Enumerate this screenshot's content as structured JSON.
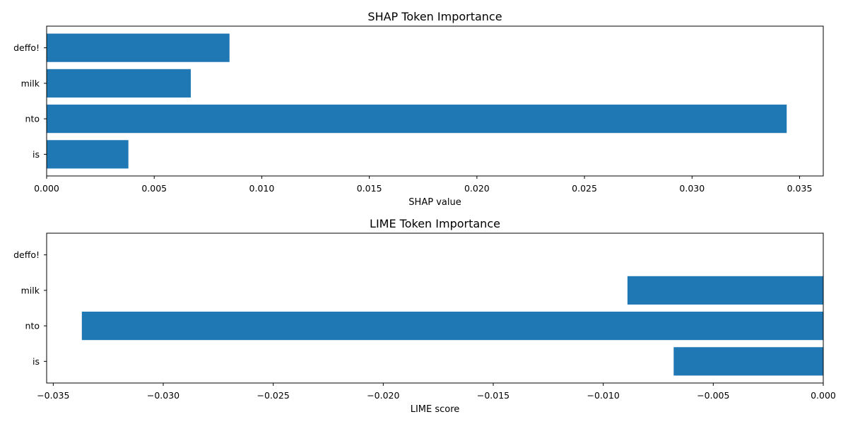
{
  "chart_data": [
    {
      "type": "bar",
      "orientation": "horizontal",
      "title": "SHAP Token Importance",
      "xlabel": "SHAP value",
      "ylabel": "",
      "categories": [
        "deffo!",
        "milk",
        "nto",
        "is"
      ],
      "values": [
        0.0085,
        0.0067,
        0.0344,
        0.0038
      ],
      "xlim": [
        0,
        0.0361
      ],
      "xticks": [
        0,
        0.005,
        0.01,
        0.015,
        0.02,
        0.025,
        0.03,
        0.035
      ],
      "xtick_labels": [
        "0.000",
        "0.005",
        "0.010",
        "0.015",
        "0.020",
        "0.025",
        "0.030",
        "0.035"
      ],
      "color": "#1f77b4",
      "grid": false,
      "legend": "none"
    },
    {
      "type": "bar",
      "orientation": "horizontal",
      "title": "LIME Token Importance",
      "xlabel": "LIME score",
      "ylabel": "",
      "categories": [
        "deffo!",
        "milk",
        "nto",
        "is"
      ],
      "values": [
        0,
        -0.0089,
        -0.0337,
        -0.0068
      ],
      "xlim": [
        -0.0353,
        0
      ],
      "xticks": [
        -0.035,
        -0.03,
        -0.025,
        -0.02,
        -0.015,
        -0.01,
        -0.005,
        0
      ],
      "xtick_labels": [
        "−0.035",
        "−0.030",
        "−0.025",
        "−0.020",
        "−0.015",
        "−0.010",
        "−0.005",
        "0.000"
      ],
      "color": "#1f77b4",
      "grid": false,
      "legend": "none"
    }
  ]
}
